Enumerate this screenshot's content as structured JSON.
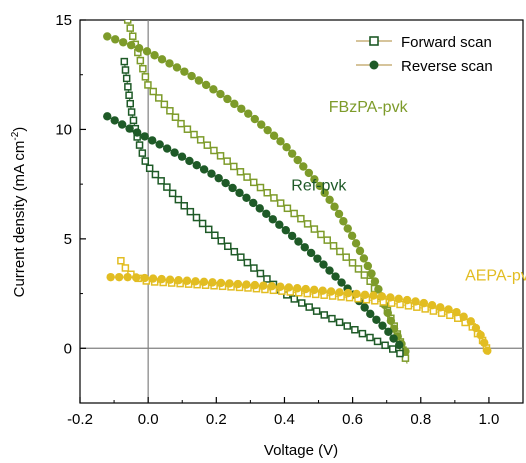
{
  "chart_data": {
    "type": "line",
    "xlabel": "Voltage (V)",
    "ylabel": {
      "main": "Current density (mA cm",
      "sup": "-2",
      "end": ")"
    },
    "xlim": [
      -0.2,
      1.1
    ],
    "ylim": [
      -2.5,
      15
    ],
    "xticks": [
      -0.2,
      0.0,
      0.2,
      0.4,
      0.6,
      0.8,
      1.0
    ],
    "yticks": [
      0,
      5,
      10,
      15
    ],
    "xtick_labels": [
      "-0.2",
      "0.0",
      "0.2",
      "0.4",
      "0.6",
      "0.8",
      "1.0"
    ],
    "ytick_labels": [
      "0",
      "5",
      "10",
      "15"
    ],
    "reference_lines": {
      "x": 0,
      "y": 0
    },
    "legend": {
      "placement": "top-right",
      "entries": [
        {
          "label": "Forward scan",
          "marker": "open-square"
        },
        {
          "label": "Reverse scan",
          "marker": "filled-circle"
        }
      ]
    },
    "annotations": [
      {
        "text": "FBzPA-pvk",
        "color": "#7d9b2a",
        "x": 0.53,
        "y": 10.8
      },
      {
        "text": "Ref-pvk",
        "color": "#1e5a27",
        "x": 0.42,
        "y": 7.2
      },
      {
        "text": "AEPA-pvk",
        "color": "#e2bd22",
        "x": 0.93,
        "y": 3.1
      }
    ],
    "series": [
      {
        "group": "FBzPA-pvk",
        "scan": "forward",
        "color": "#7d9b2a",
        "marker": "open-square",
        "x": [
          -0.06,
          -0.04,
          -0.02,
          0.0,
          0.1,
          0.2,
          0.3,
          0.4,
          0.5,
          0.6,
          0.65,
          0.7,
          0.72,
          0.74,
          0.76
        ],
        "y": [
          15.0,
          14.0,
          13.0,
          12.0,
          10.2,
          8.95,
          7.7,
          6.5,
          5.3,
          3.9,
          3.1,
          1.8,
          1.1,
          0.3,
          -0.7
        ]
      },
      {
        "group": "FBzPA-pvk",
        "scan": "reverse",
        "color": "#7d9b2a",
        "marker": "filled-circle",
        "x": [
          -0.12,
          -0.05,
          0.0,
          0.1,
          0.2,
          0.3,
          0.4,
          0.5,
          0.55,
          0.6,
          0.65,
          0.68,
          0.7,
          0.72,
          0.74,
          0.76
        ],
        "y": [
          14.25,
          13.85,
          13.55,
          12.7,
          11.75,
          10.65,
          9.3,
          7.5,
          6.4,
          5.1,
          3.6,
          2.55,
          1.75,
          0.95,
          0.3,
          -0.3
        ]
      },
      {
        "group": "Ref-pvk",
        "scan": "forward",
        "color": "#1e5a27",
        "marker": "open-square",
        "x": [
          -0.07,
          -0.05,
          -0.03,
          -0.01,
          0.0,
          0.1,
          0.2,
          0.3,
          0.4,
          0.5,
          0.6,
          0.65,
          0.7,
          0.72,
          0.74
        ],
        "y": [
          13.1,
          10.9,
          9.5,
          8.6,
          8.3,
          6.6,
          5.1,
          3.8,
          2.5,
          1.65,
          0.9,
          0.5,
          0.1,
          -0.05,
          -0.25
        ]
      },
      {
        "group": "Ref-pvk",
        "scan": "reverse",
        "color": "#1e5a27",
        "marker": "filled-circle",
        "x": [
          -0.12,
          -0.05,
          0.0,
          0.1,
          0.2,
          0.3,
          0.4,
          0.5,
          0.6,
          0.65,
          0.7,
          0.72,
          0.74,
          0.75
        ],
        "y": [
          10.6,
          10.0,
          9.6,
          8.75,
          7.85,
          6.75,
          5.45,
          4.05,
          2.5,
          1.6,
          0.85,
          0.45,
          0.1,
          -0.05
        ]
      },
      {
        "group": "AEPA-pvk",
        "scan": "forward",
        "color": "#e2bd22",
        "marker": "open-square",
        "x": [
          -0.08,
          -0.06,
          -0.04,
          0.0,
          0.1,
          0.2,
          0.3,
          0.4,
          0.5,
          0.6,
          0.7,
          0.8,
          0.9,
          0.95,
          0.98,
          1.0
        ],
        "y": [
          4.0,
          3.5,
          3.25,
          3.05,
          2.95,
          2.85,
          2.75,
          2.6,
          2.45,
          2.3,
          2.1,
          1.85,
          1.45,
          1.0,
          0.4,
          -0.2
        ]
      },
      {
        "group": "AEPA-pvk",
        "scan": "reverse",
        "color": "#e2bd22",
        "marker": "filled-circle",
        "x": [
          -0.11,
          -0.05,
          0.0,
          0.1,
          0.2,
          0.3,
          0.4,
          0.5,
          0.6,
          0.7,
          0.8,
          0.9,
          0.95,
          0.98,
          1.0
        ],
        "y": [
          3.25,
          3.25,
          3.2,
          3.1,
          3.0,
          2.9,
          2.8,
          2.65,
          2.5,
          2.35,
          2.1,
          1.7,
          1.2,
          0.5,
          -0.3
        ]
      }
    ]
  }
}
